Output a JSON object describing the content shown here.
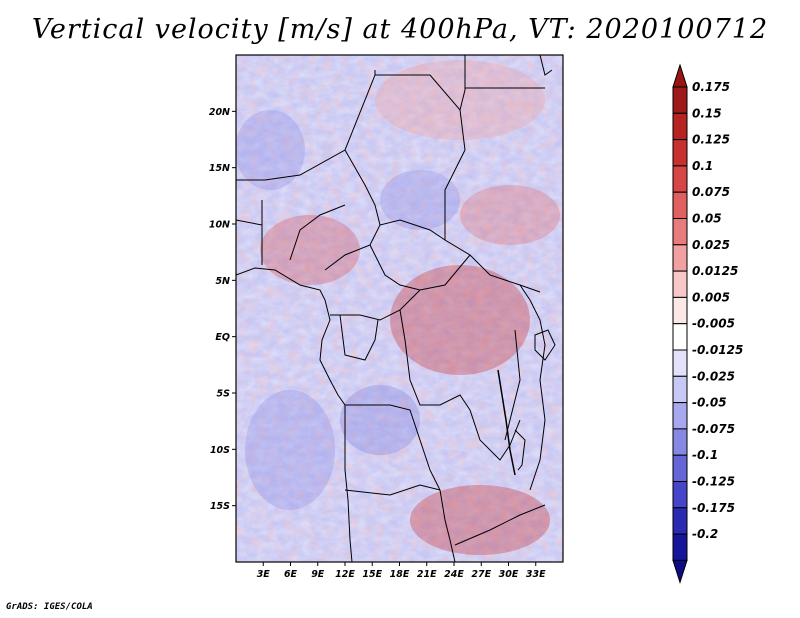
{
  "title": "Vertical velocity [m/s] at 400hPa, VT: 2020100712",
  "credit": "GrADS: IGES/COLA",
  "map": {
    "lon_range": [
      0,
      36
    ],
    "lat_range": [
      -20,
      25
    ],
    "lat_ticks": [
      {
        "value": 20,
        "label": "20N"
      },
      {
        "value": 15,
        "label": "15N"
      },
      {
        "value": 10,
        "label": "10N"
      },
      {
        "value": 5,
        "label": "5N"
      },
      {
        "value": 0,
        "label": "EQ"
      },
      {
        "value": -5,
        "label": "5S"
      },
      {
        "value": -10,
        "label": "10S"
      },
      {
        "value": -15,
        "label": "15S"
      }
    ],
    "lon_ticks": [
      {
        "value": 3,
        "label": "3E"
      },
      {
        "value": 6,
        "label": "6E"
      },
      {
        "value": 9,
        "label": "9E"
      },
      {
        "value": 12,
        "label": "12E"
      },
      {
        "value": 15,
        "label": "15E"
      },
      {
        "value": 18,
        "label": "18E"
      },
      {
        "value": 21,
        "label": "21E"
      },
      {
        "value": 24,
        "label": "24E"
      },
      {
        "value": 27,
        "label": "27E"
      },
      {
        "value": 30,
        "label": "30E"
      },
      {
        "value": 33,
        "label": "33E"
      }
    ]
  },
  "colorbar": {
    "labels": [
      "0.175",
      "0.15",
      "0.125",
      "0.1",
      "0.075",
      "0.05",
      "0.025",
      "0.0125",
      "0.005",
      "-0.005",
      "-0.0125",
      "-0.025",
      "-0.05",
      "-0.075",
      "-0.1",
      "-0.125",
      "-0.175",
      "-0.2"
    ],
    "colors": [
      "#9e1a1a",
      "#b72222",
      "#c93030",
      "#d64646",
      "#e06060",
      "#e87c7c",
      "#f1a1a1",
      "#f8c8c8",
      "#fde8e8",
      "#ffffff",
      "#e2e2fb",
      "#c8c8f4",
      "#a8a8ee",
      "#8787e4",
      "#6565d8",
      "#4545c9",
      "#2a2ab3",
      "#16169a",
      "#0a0a80"
    ],
    "top_cap_color": "#9a1414",
    "bottom_cap_color": "#0c0c86"
  }
}
